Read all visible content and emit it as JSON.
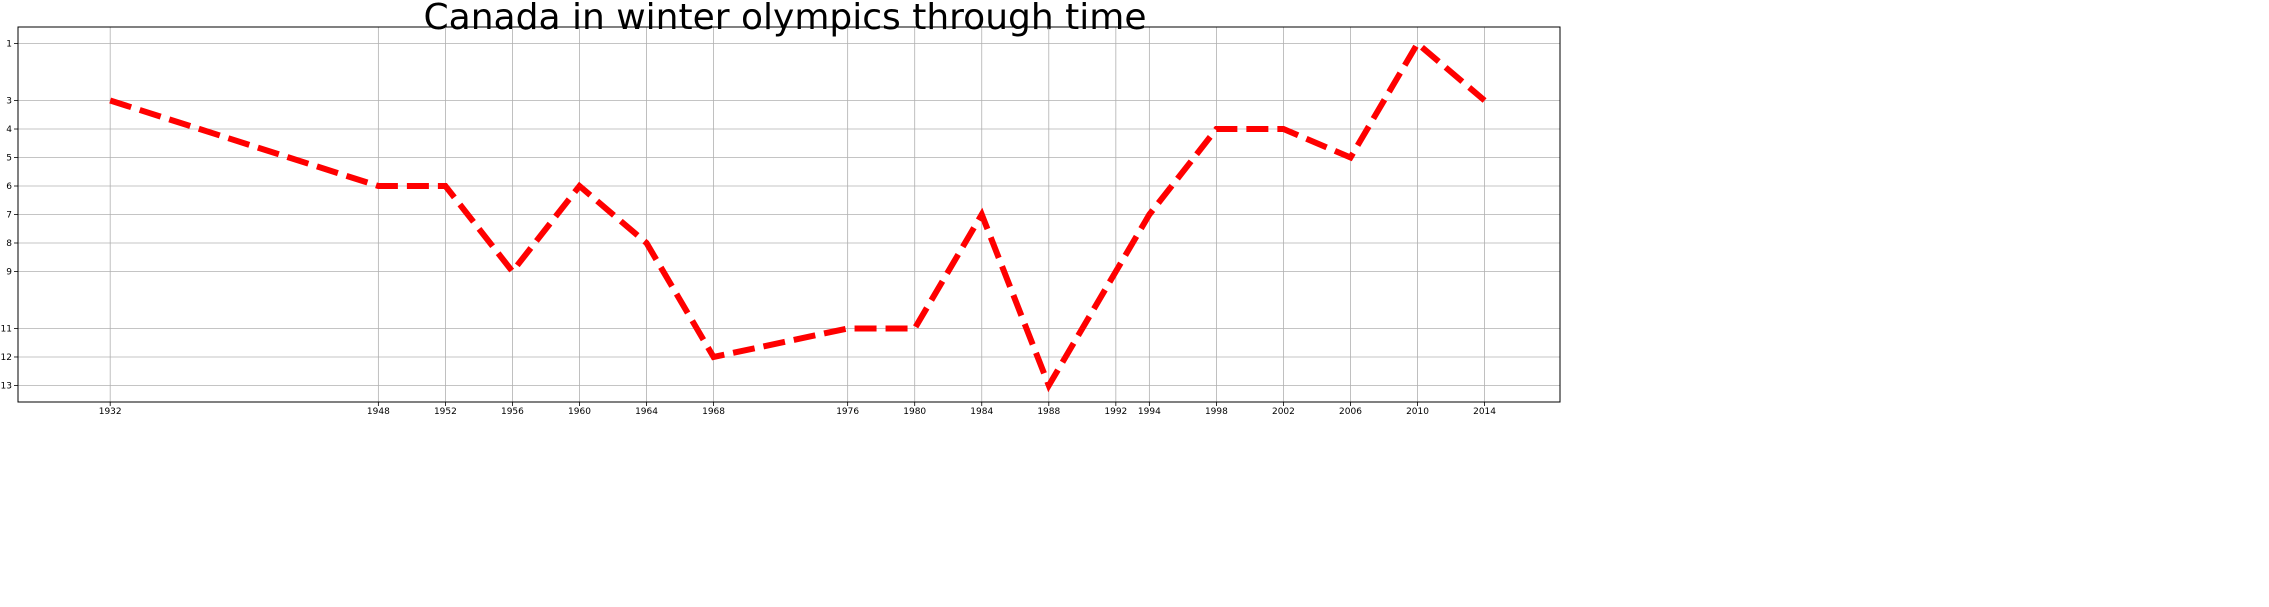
{
  "chart_data": {
    "type": "line",
    "title": "Canada in winter olympics through time",
    "xlabel": "",
    "ylabel": "",
    "x": [
      1932,
      1948,
      1952,
      1956,
      1960,
      1964,
      1968,
      1976,
      1980,
      1984,
      1988,
      1992,
      1994,
      1998,
      2002,
      2006,
      2010,
      2014
    ],
    "y": [
      3,
      6,
      6,
      9,
      6,
      8,
      12,
      11,
      11,
      7,
      13,
      9,
      7,
      4,
      4,
      5,
      1,
      3
    ],
    "xticks": [
      "1932",
      "1948",
      "1952",
      "1956",
      "1960",
      "1964",
      "1968",
      "1976",
      "1980",
      "1984",
      "1988",
      "1992",
      "1994",
      "1998",
      "2002",
      "2006",
      "2010",
      "2014"
    ],
    "yticks": [
      "1",
      "3",
      "4",
      "5",
      "6",
      "7",
      "8",
      "9",
      "11",
      "12",
      "13"
    ],
    "xlim": [
      1926.5,
      2018.5
    ],
    "ylim": [
      13.58,
      0.42
    ],
    "y_inverted": true,
    "grid": true,
    "line_color": "#ff0000",
    "line_style": "dashed"
  }
}
